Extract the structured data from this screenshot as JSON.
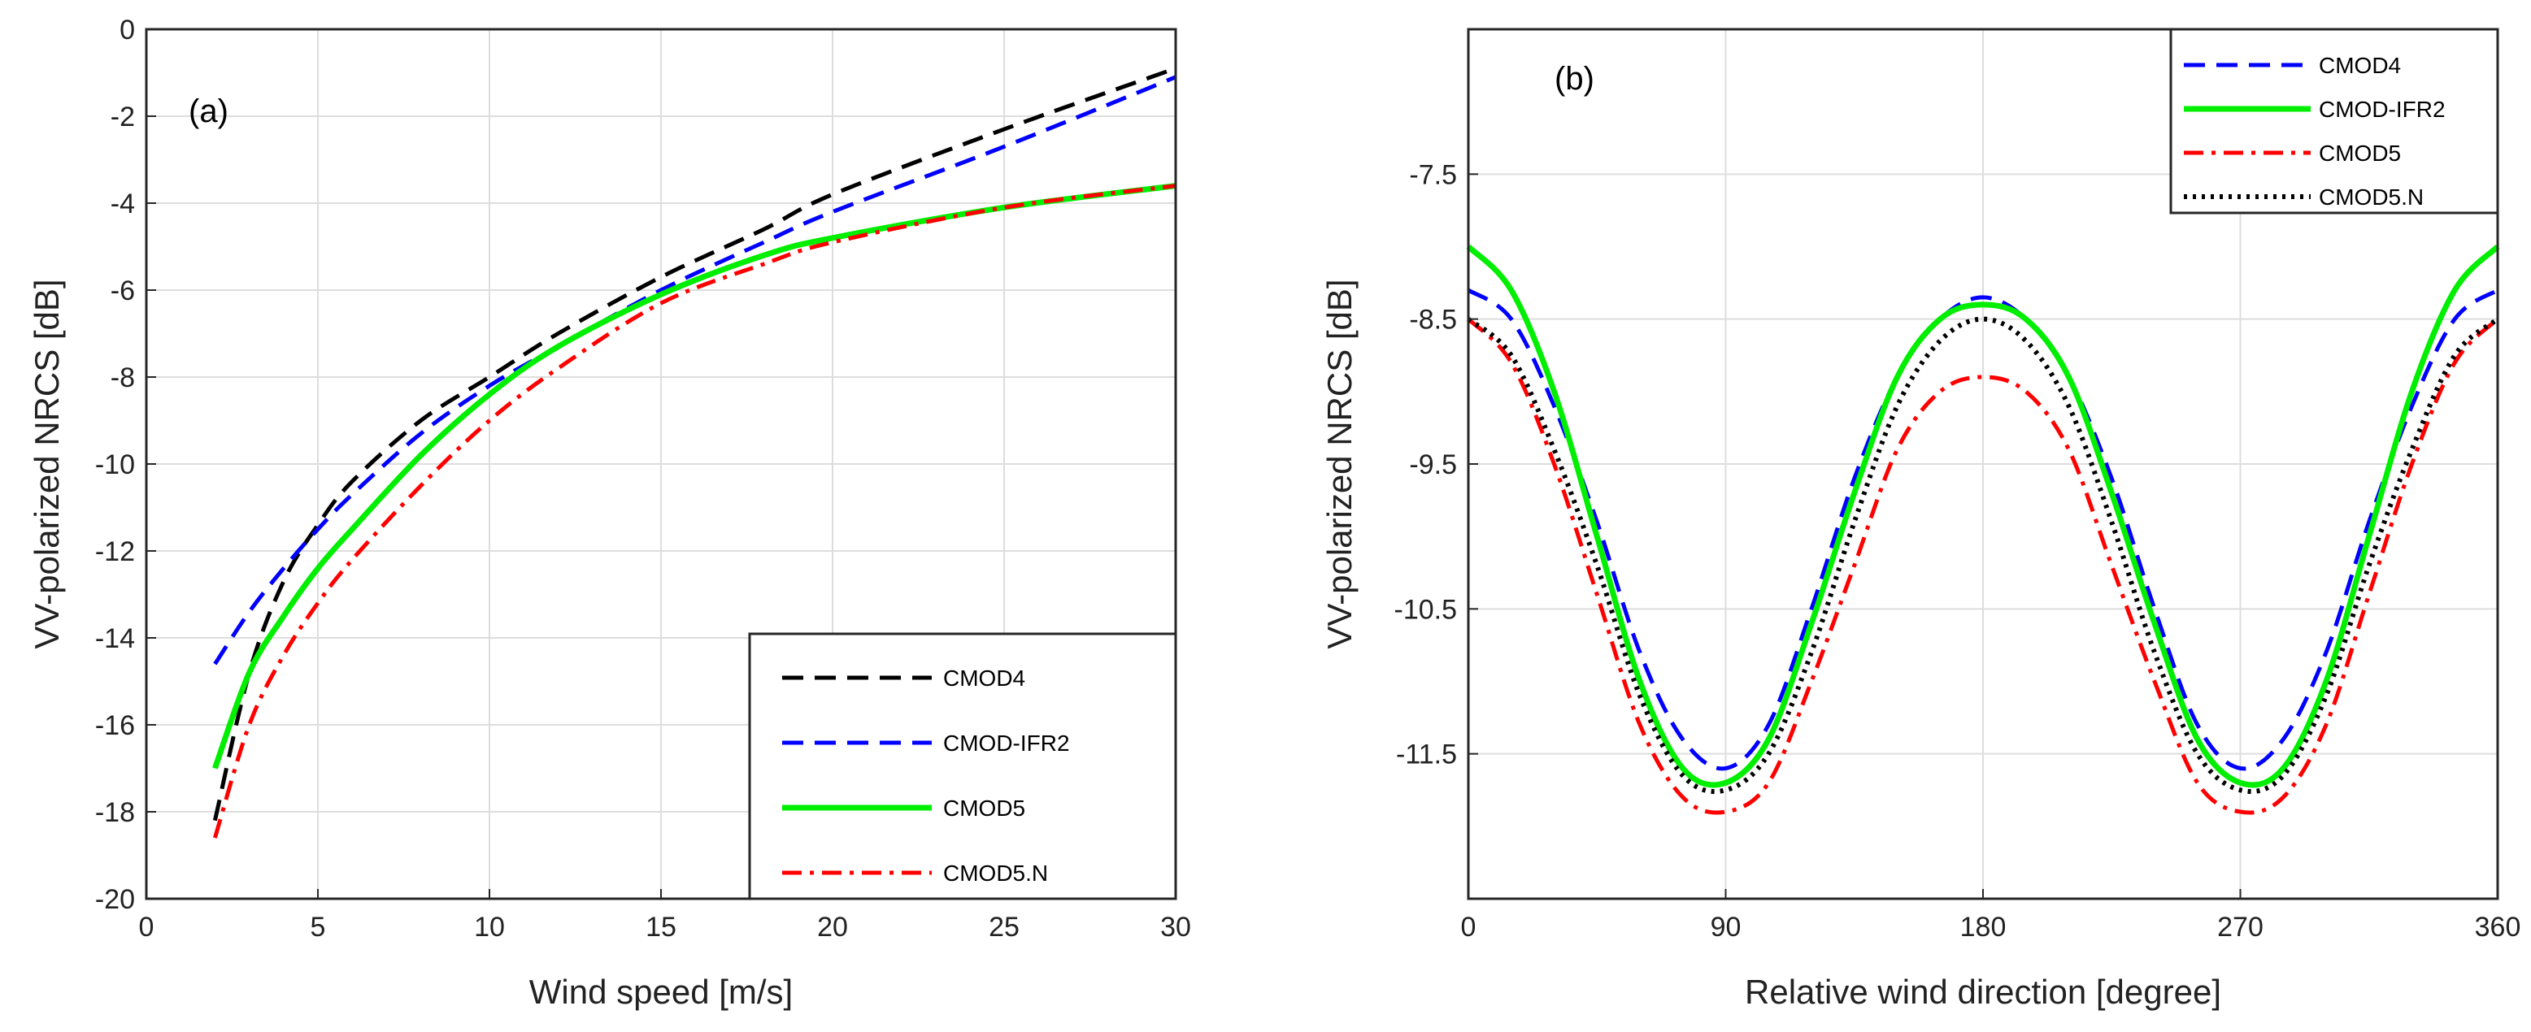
{
  "chart_data": [
    {
      "type": "line",
      "panel_label": "(a)",
      "xlabel": "Wind speed [m/s]",
      "ylabel": "VV-polarized NRCS [dB]",
      "xlim": [
        0,
        30
      ],
      "ylim": [
        -20,
        0
      ],
      "xticks": [
        0,
        5,
        10,
        15,
        20,
        25,
        30
      ],
      "yticks": [
        0,
        -2,
        -4,
        -6,
        -8,
        -10,
        -12,
        -14,
        -16,
        -18,
        -20
      ],
      "grid": true,
      "legend_position": "bottom-right",
      "x": [
        2,
        3,
        4,
        5,
        6,
        8,
        10,
        12,
        15,
        18,
        20,
        25,
        30
      ],
      "series": [
        {
          "name": "CMOD4",
          "color": "#000000",
          "style": "dashed",
          "values": [
            -18.2,
            -14.8,
            -12.7,
            -11.4,
            -10.4,
            -9.0,
            -8.0,
            -7.0,
            -5.7,
            -4.6,
            -3.8,
            -2.3,
            -0.9
          ]
        },
        {
          "name": "CMOD-IFR2",
          "color": "#0000ff",
          "style": "dashed",
          "values": [
            -14.6,
            -13.4,
            -12.4,
            -11.5,
            -10.7,
            -9.3,
            -8.2,
            -7.3,
            -6.0,
            -4.9,
            -4.2,
            -2.7,
            -1.1
          ]
        },
        {
          "name": "CMOD5",
          "color": "#00ee00",
          "style": "solid",
          "values": [
            -17.0,
            -14.8,
            -13.5,
            -12.4,
            -11.5,
            -9.8,
            -8.4,
            -7.3,
            -6.1,
            -5.2,
            -4.8,
            -4.1,
            -3.6
          ]
        },
        {
          "name": "CMOD5.N",
          "color": "#ff0000",
          "style": "dashdot",
          "values": [
            -18.6,
            -16.0,
            -14.4,
            -13.2,
            -12.2,
            -10.5,
            -9.0,
            -7.8,
            -6.3,
            -5.4,
            -4.9,
            -4.1,
            -3.6
          ]
        }
      ]
    },
    {
      "type": "line",
      "panel_label": "(b)",
      "xlabel": "Relative wind direction [degree]",
      "ylabel": "VV-polarized NRCS [dB]",
      "xlim": [
        0,
        360
      ],
      "ylim": [
        -12.5,
        -6.5
      ],
      "xticks": [
        0,
        90,
        180,
        270,
        360
      ],
      "yticks": [
        -7.5,
        -8.5,
        -9.5,
        -10.5,
        -11.5
      ],
      "grid": true,
      "legend_position": "top-right",
      "x": [
        0,
        15,
        30,
        45,
        60,
        75,
        90,
        105,
        120,
        135,
        150,
        165,
        180,
        195,
        210,
        225,
        240,
        255,
        270,
        285,
        300,
        315,
        330,
        345,
        360
      ],
      "series": [
        {
          "name": "CMOD4",
          "color": "#0000ff",
          "style": "dashed",
          "values": [
            -8.3,
            -8.5,
            -9.1,
            -9.9,
            -10.8,
            -11.4,
            -11.6,
            -11.3,
            -10.5,
            -9.6,
            -8.9,
            -8.5,
            -8.35,
            -8.5,
            -8.9,
            -9.6,
            -10.5,
            -11.3,
            -11.6,
            -11.4,
            -10.8,
            -9.9,
            -9.1,
            -8.5,
            -8.3
          ]
        },
        {
          "name": "CMOD-IFR2",
          "color": "#00ee00",
          "style": "solid",
          "values": [
            -8.0,
            -8.3,
            -9.0,
            -10.0,
            -11.0,
            -11.6,
            -11.7,
            -11.4,
            -10.6,
            -9.7,
            -8.9,
            -8.5,
            -8.4,
            -8.5,
            -8.9,
            -9.7,
            -10.6,
            -11.4,
            -11.7,
            -11.6,
            -11.0,
            -10.0,
            -9.0,
            -8.3,
            -8.0
          ]
        },
        {
          "name": "CMOD5",
          "color": "#ff0000",
          "style": "dashdot",
          "values": [
            -8.5,
            -8.8,
            -9.5,
            -10.4,
            -11.3,
            -11.8,
            -11.9,
            -11.7,
            -11.0,
            -10.2,
            -9.4,
            -9.0,
            -8.9,
            -9.0,
            -9.4,
            -10.2,
            -11.0,
            -11.7,
            -11.9,
            -11.8,
            -11.3,
            -10.4,
            -9.5,
            -8.8,
            -8.5
          ]
        },
        {
          "name": "CMOD5.N",
          "color": "#000000",
          "style": "dotted",
          "values": [
            -8.5,
            -8.75,
            -9.4,
            -10.2,
            -11.1,
            -11.65,
            -11.75,
            -11.5,
            -10.8,
            -9.9,
            -9.1,
            -8.65,
            -8.5,
            -8.65,
            -9.1,
            -9.9,
            -10.8,
            -11.5,
            -11.75,
            -11.65,
            -11.1,
            -10.2,
            -9.4,
            -8.75,
            -8.5
          ]
        }
      ]
    }
  ]
}
